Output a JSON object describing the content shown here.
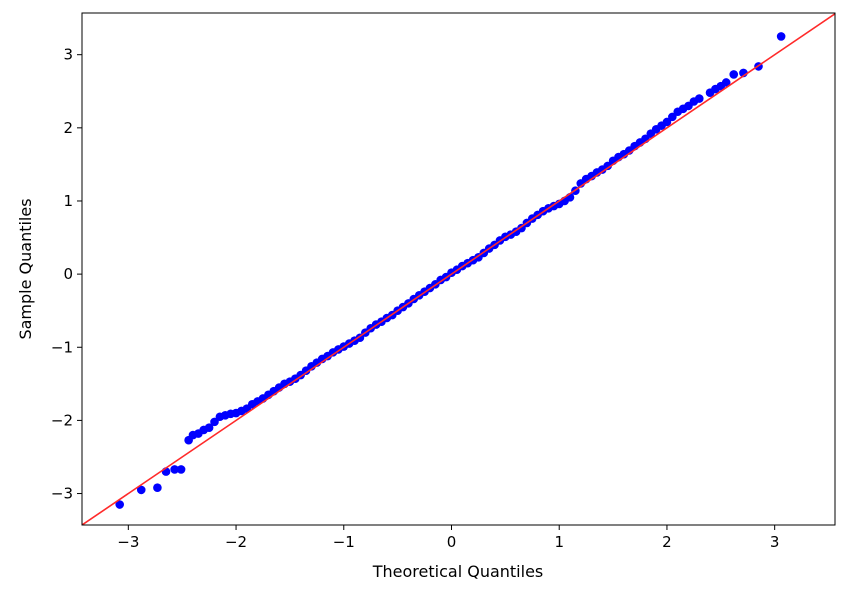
{
  "chart_data": {
    "type": "scatter",
    "title": "",
    "xlabel": "Theoretical Quantiles",
    "ylabel": "Sample Quantiles",
    "xlim": [
      -3.43,
      3.56
    ],
    "ylim": [
      -3.43,
      3.57
    ],
    "xticks": [
      -3,
      -2,
      -1,
      0,
      1,
      2,
      3
    ],
    "yticks": [
      -3,
      -2,
      -1,
      0,
      1,
      2,
      3
    ],
    "xtick_labels": [
      "−3",
      "−2",
      "−1",
      "0",
      "1",
      "2",
      "3"
    ],
    "ytick_labels": [
      "−3",
      "−2",
      "−1",
      "0",
      "1",
      "2",
      "3"
    ],
    "grid": false,
    "marker_color": "#0000ff",
    "reference_line": {
      "slope": 1,
      "intercept": 0,
      "color": "#ff2a2a"
    },
    "points": [
      [
        -3.08,
        -3.15
      ],
      [
        -2.88,
        -2.95
      ],
      [
        -2.73,
        -2.92
      ],
      [
        -2.65,
        -2.7
      ],
      [
        -2.57,
        -2.67
      ],
      [
        -2.51,
        -2.67
      ],
      [
        -2.44,
        -2.27
      ],
      [
        -2.4,
        -2.2
      ],
      [
        -2.35,
        -2.18
      ],
      [
        -2.3,
        -2.13
      ],
      [
        -2.25,
        -2.1
      ],
      [
        -2.2,
        -2.02
      ],
      [
        -2.15,
        -1.95
      ],
      [
        -2.1,
        -1.93
      ],
      [
        -2.05,
        -1.91
      ],
      [
        -2.0,
        -1.9
      ],
      [
        -1.95,
        -1.87
      ],
      [
        -1.9,
        -1.84
      ],
      [
        -1.85,
        -1.78
      ],
      [
        -1.8,
        -1.74
      ],
      [
        -1.75,
        -1.7
      ],
      [
        -1.7,
        -1.65
      ],
      [
        -1.65,
        -1.6
      ],
      [
        -1.6,
        -1.55
      ],
      [
        -1.55,
        -1.5
      ],
      [
        -1.5,
        -1.47
      ],
      [
        -1.45,
        -1.43
      ],
      [
        -1.4,
        -1.38
      ],
      [
        -1.35,
        -1.32
      ],
      [
        -1.3,
        -1.26
      ],
      [
        -1.25,
        -1.21
      ],
      [
        -1.2,
        -1.16
      ],
      [
        -1.15,
        -1.12
      ],
      [
        -1.1,
        -1.07
      ],
      [
        -1.05,
        -1.03
      ],
      [
        -1.0,
        -0.99
      ],
      [
        -0.95,
        -0.95
      ],
      [
        -0.9,
        -0.91
      ],
      [
        -0.85,
        -0.87
      ],
      [
        -0.8,
        -0.8
      ],
      [
        -0.75,
        -0.74
      ],
      [
        -0.7,
        -0.69
      ],
      [
        -0.65,
        -0.65
      ],
      [
        -0.6,
        -0.6
      ],
      [
        -0.55,
        -0.56
      ],
      [
        -0.5,
        -0.5
      ],
      [
        -0.45,
        -0.45
      ],
      [
        -0.4,
        -0.4
      ],
      [
        -0.35,
        -0.34
      ],
      [
        -0.3,
        -0.29
      ],
      [
        -0.25,
        -0.24
      ],
      [
        -0.2,
        -0.19
      ],
      [
        -0.15,
        -0.14
      ],
      [
        -0.1,
        -0.08
      ],
      [
        -0.05,
        -0.04
      ],
      [
        0.0,
        0.02
      ],
      [
        0.05,
        0.06
      ],
      [
        0.1,
        0.11
      ],
      [
        0.15,
        0.15
      ],
      [
        0.2,
        0.19
      ],
      [
        0.25,
        0.23
      ],
      [
        0.3,
        0.29
      ],
      [
        0.35,
        0.35
      ],
      [
        0.4,
        0.4
      ],
      [
        0.45,
        0.46
      ],
      [
        0.5,
        0.51
      ],
      [
        0.55,
        0.54
      ],
      [
        0.6,
        0.58
      ],
      [
        0.65,
        0.63
      ],
      [
        0.7,
        0.7
      ],
      [
        0.75,
        0.76
      ],
      [
        0.8,
        0.81
      ],
      [
        0.85,
        0.86
      ],
      [
        0.9,
        0.9
      ],
      [
        0.95,
        0.93
      ],
      [
        1.0,
        0.96
      ],
      [
        1.05,
        1.0
      ],
      [
        1.1,
        1.05
      ],
      [
        1.15,
        1.14
      ],
      [
        1.2,
        1.24
      ],
      [
        1.25,
        1.3
      ],
      [
        1.3,
        1.34
      ],
      [
        1.35,
        1.39
      ],
      [
        1.4,
        1.43
      ],
      [
        1.45,
        1.48
      ],
      [
        1.5,
        1.55
      ],
      [
        1.55,
        1.6
      ],
      [
        1.6,
        1.64
      ],
      [
        1.65,
        1.69
      ],
      [
        1.7,
        1.75
      ],
      [
        1.75,
        1.8
      ],
      [
        1.8,
        1.85
      ],
      [
        1.85,
        1.92
      ],
      [
        1.9,
        1.98
      ],
      [
        1.95,
        2.03
      ],
      [
        2.0,
        2.08
      ],
      [
        2.05,
        2.15
      ],
      [
        2.1,
        2.22
      ],
      [
        2.15,
        2.26
      ],
      [
        2.2,
        2.3
      ],
      [
        2.25,
        2.36
      ],
      [
        2.3,
        2.4
      ],
      [
        2.4,
        2.48
      ],
      [
        2.45,
        2.53
      ],
      [
        2.5,
        2.57
      ],
      [
        2.55,
        2.62
      ],
      [
        2.62,
        2.73
      ],
      [
        2.71,
        2.75
      ],
      [
        2.85,
        2.84
      ],
      [
        3.06,
        3.25
      ]
    ]
  }
}
